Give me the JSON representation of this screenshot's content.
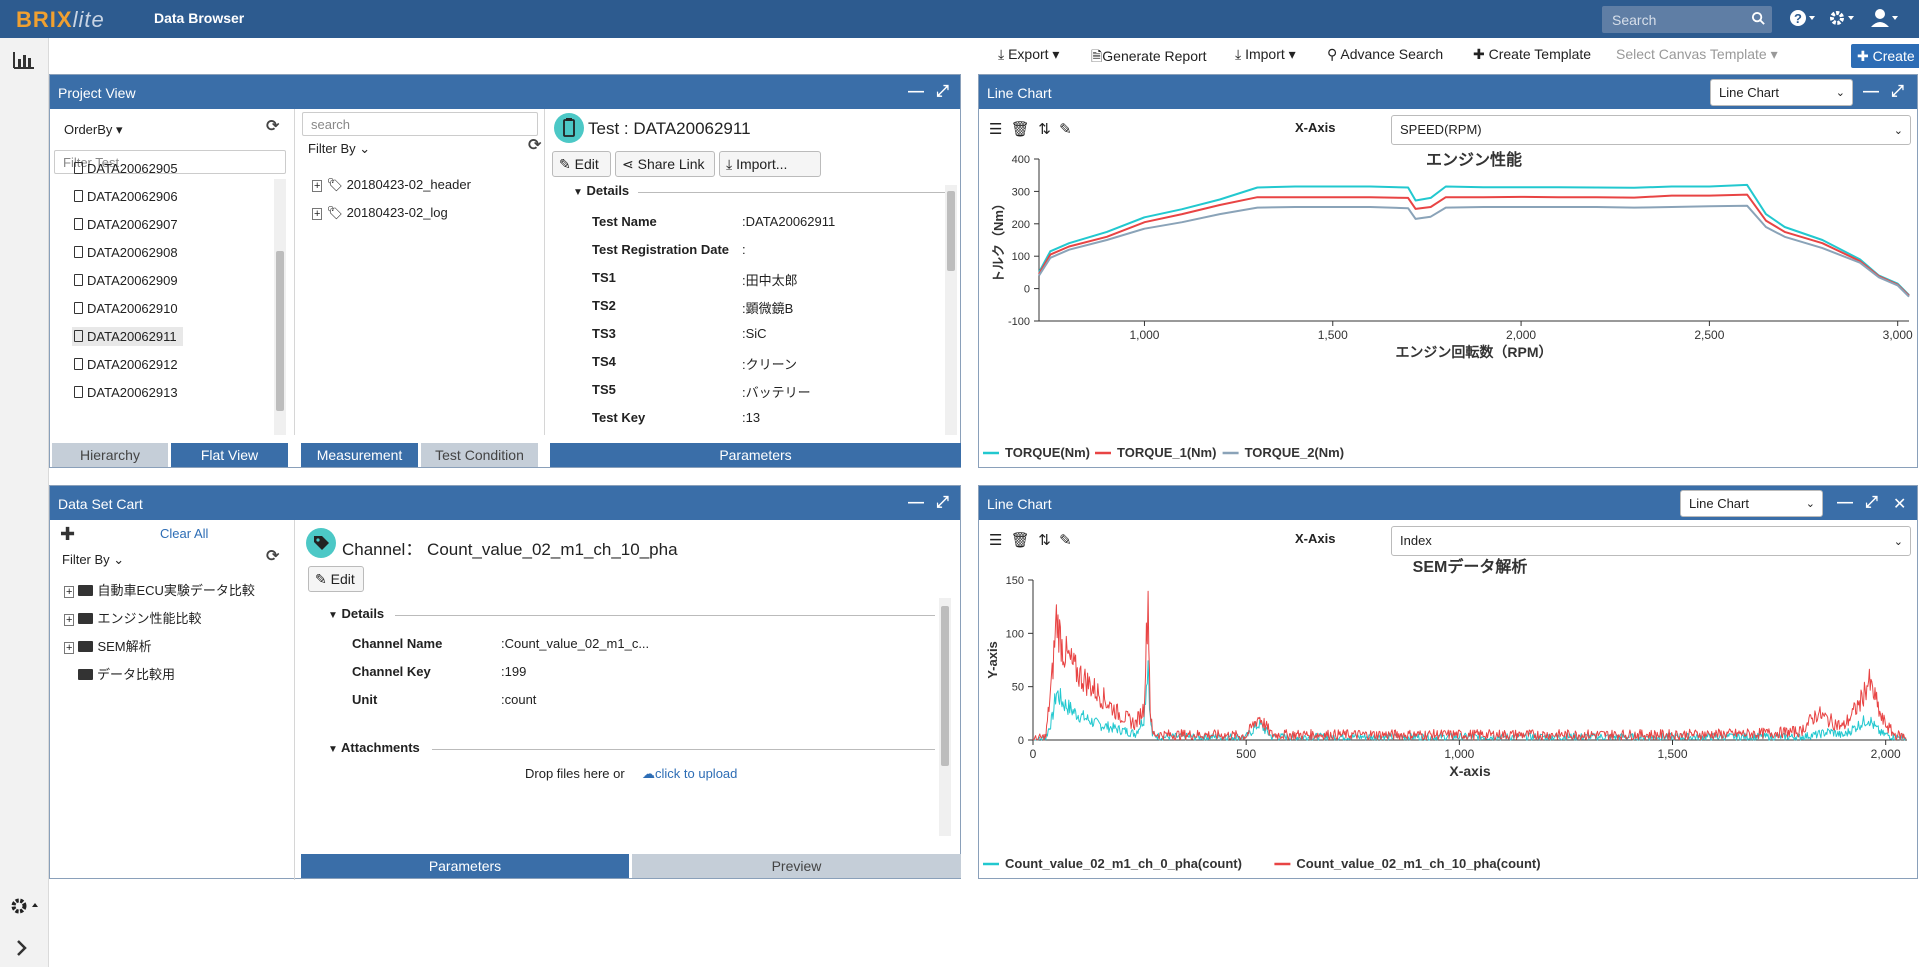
{
  "app": {
    "logo_main": "BRIX",
    "logo_sub": "lite",
    "title": "Data Browser",
    "search_placeholder": "Search"
  },
  "toolbar": {
    "export": "Export",
    "generate_report": "Generate Report",
    "import": "Import",
    "advance_search": "Advance Search",
    "create_template": "Create Template",
    "select_canvas_template": "Select Canvas Template",
    "create_canvas": "Create Canvas"
  },
  "project_view": {
    "title": "Project View",
    "order_by": "OrderBy",
    "filter_placeholder": "Filter Test",
    "tests": [
      "DATA20062905",
      "DATA20062906",
      "DATA20062907",
      "DATA20062908",
      "DATA20062909",
      "DATA20062910",
      "DATA20062911",
      "DATA20062912",
      "DATA20062913"
    ],
    "selected_test": "DATA20062911",
    "tab_hierarchy": "Hierarchy",
    "tab_flat": "Flat View",
    "search_placeholder": "search",
    "filter_by": "Filter By",
    "measurements": [
      "20180423-02_header",
      "20180423-02_log"
    ],
    "tab_measurement": "Measurement",
    "tab_test_condition": "Test Condition",
    "test_header": "Test : DATA20062911",
    "btn_edit": "Edit",
    "btn_share": "Share Link",
    "btn_import": "Import...",
    "details_label": "Details",
    "details": [
      {
        "label": "Test Name",
        "value": ":DATA20062911"
      },
      {
        "label": "Test Registration Date",
        "value": ":"
      },
      {
        "label": "TS1",
        "value": ":田中太郎"
      },
      {
        "label": "TS2",
        "value": ":顕微鏡B"
      },
      {
        "label": "TS3",
        "value": ":SiC"
      },
      {
        "label": "TS4",
        "value": ":クリーン"
      },
      {
        "label": "TS5",
        "value": ":バッテリー"
      },
      {
        "label": "Test Key",
        "value": ":13"
      }
    ],
    "tab_parameters": "Parameters"
  },
  "data_set_cart": {
    "title": "Data Set Cart",
    "clear_all": "Clear All",
    "filter_by": "Filter By",
    "folders": [
      "自動車ECU実験データ比較",
      "エンジン性能比較",
      "SEM解析",
      "データ比較用"
    ],
    "channel_header": "Channel： Count_value_02_m1_ch_10_pha",
    "btn_edit": "Edit",
    "details_label": "Details",
    "details": [
      {
        "label": "Channel Name",
        "value": ":Count_value_02_m1_c..."
      },
      {
        "label": "Channel Key",
        "value": ":199"
      },
      {
        "label": "Unit",
        "value": ":count"
      }
    ],
    "attachments_label": "Attachments",
    "drop_text": "Drop files here or",
    "upload_link": "click to upload",
    "tab_parameters": "Parameters",
    "tab_preview": "Preview"
  },
  "chart_panel_1": {
    "title": "Line Chart",
    "type_select": "Line Chart",
    "xaxis_label": "X-Axis",
    "xaxis_value": "SPEED(RPM)"
  },
  "chart_panel_2": {
    "title": "Line Chart",
    "type_select": "Line Chart",
    "xaxis_label": "X-Axis",
    "xaxis_value": "Index"
  },
  "chart_data": [
    {
      "type": "line",
      "title": "エンジン性能",
      "xlabel": "エンジン回転数（RPM）",
      "ylabel": "トルク（Nm）",
      "xlim": [
        720,
        3030
      ],
      "ylim": [
        -100,
        400
      ],
      "xticks": [
        1000,
        1500,
        2000,
        2500,
        3000
      ],
      "xtick_labels": [
        "1,000",
        "1,500",
        "2,000",
        "2,500",
        "3,000"
      ],
      "yticks": [
        -100,
        0,
        100,
        200,
        300,
        400
      ],
      "ytick_labels": [
        "-100",
        "0",
        "100",
        "200",
        "300",
        "400"
      ],
      "x": [
        720,
        750,
        800,
        900,
        1000,
        1100,
        1200,
        1300,
        1400,
        1500,
        1600,
        1700,
        1720,
        1760,
        1800,
        1900,
        2000,
        2100,
        2200,
        2300,
        2400,
        2500,
        2600,
        2650,
        2700,
        2800,
        2900,
        2950,
        3000,
        3030
      ],
      "series": [
        {
          "name": "TORQUE(Nm)",
          "color": "#22c8cf",
          "values": [
            50,
            115,
            140,
            175,
            220,
            245,
            275,
            312,
            315,
            315,
            315,
            312,
            272,
            280,
            315,
            313,
            313,
            313,
            312,
            311,
            315,
            315,
            320,
            230,
            190,
            150,
            90,
            40,
            15,
            -20
          ]
        },
        {
          "name": "TORQUE_1(Nm)",
          "color": "#e84444",
          "values": [
            45,
            105,
            130,
            160,
            205,
            230,
            258,
            282,
            282,
            282,
            282,
            280,
            246,
            252,
            282,
            282,
            283,
            282,
            282,
            281,
            287,
            287,
            290,
            210,
            175,
            140,
            85,
            38,
            12,
            -22
          ]
        },
        {
          "name": "TORQUE_2(Nm)",
          "color": "#8aa3b8",
          "values": [
            40,
            95,
            120,
            150,
            185,
            205,
            230,
            250,
            252,
            252,
            252,
            248,
            215,
            222,
            250,
            252,
            252,
            252,
            252,
            250,
            252,
            254,
            256,
            190,
            160,
            125,
            80,
            35,
            10,
            -25
          ]
        }
      ],
      "legend": "bottom-left"
    },
    {
      "type": "line",
      "title": "SEMデータ解析",
      "xlabel": "X-axis",
      "ylabel": "Y-axis",
      "xlim": [
        0,
        2050
      ],
      "ylim": [
        0,
        150
      ],
      "xticks": [
        0,
        500,
        1000,
        1500,
        2000
      ],
      "xtick_labels": [
        "0",
        "500",
        "1,000",
        "1,500",
        "2,000"
      ],
      "yticks": [
        0,
        50,
        100,
        150
      ],
      "ytick_labels": [
        "0",
        "50",
        "100",
        "150"
      ],
      "x": [
        0,
        30,
        45,
        55,
        70,
        100,
        150,
        200,
        240,
        260,
        270,
        275,
        280,
        300,
        400,
        500,
        530,
        560,
        700,
        900,
        1100,
        1300,
        1500,
        1700,
        1800,
        1840,
        1870,
        1900,
        1940,
        1960,
        1975,
        1990,
        2020,
        2050
      ],
      "series": [
        {
          "name": "Count_value_02_m1_ch_0_pha(count)",
          "color": "#22c8cf",
          "values": [
            0,
            2,
            20,
            45,
            35,
            25,
            15,
            10,
            6,
            20,
            75,
            20,
            5,
            3,
            3,
            3,
            15,
            3,
            3,
            3,
            3,
            3,
            3,
            3,
            3,
            5,
            8,
            4,
            15,
            20,
            12,
            6,
            3,
            2
          ]
        },
        {
          "name": "Count_value_02_m1_ch_10_pha(count)",
          "color": "#e84444",
          "values": [
            0,
            3,
            60,
            115,
            85,
            65,
            45,
            25,
            15,
            30,
            135,
            30,
            6,
            5,
            5,
            4,
            22,
            5,
            5,
            5,
            5,
            5,
            5,
            6,
            8,
            25,
            18,
            12,
            35,
            55,
            40,
            20,
            5,
            3
          ]
        }
      ],
      "legend": "bottom-left"
    }
  ]
}
